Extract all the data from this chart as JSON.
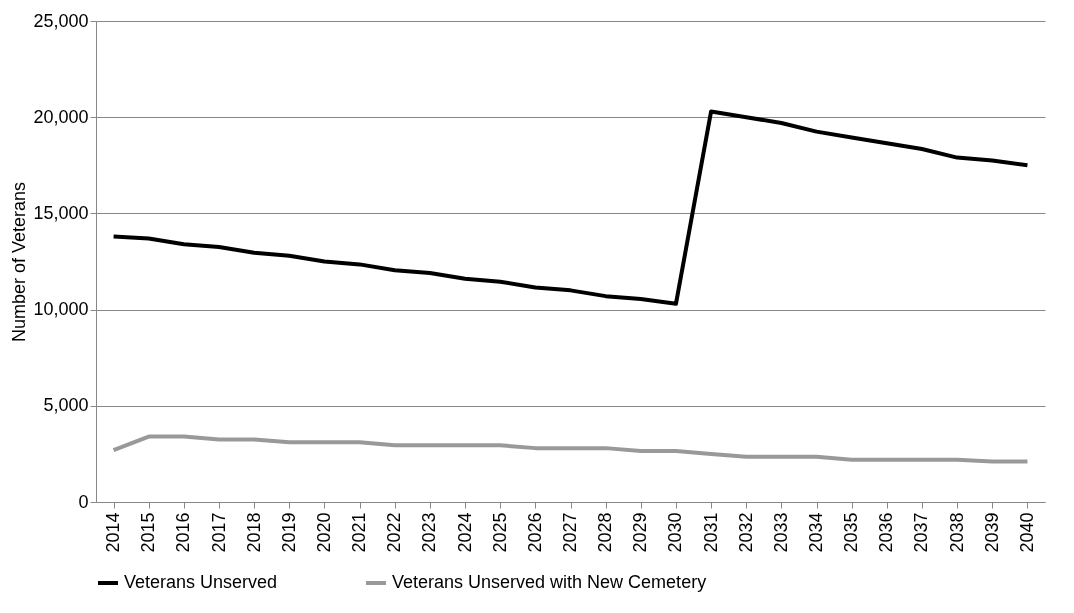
{
  "chart_data": {
    "type": "line",
    "ylabel": "Number of Veterans",
    "categories": [
      "2014",
      "2015",
      "2016",
      "2017",
      "2018",
      "2019",
      "2020",
      "2021",
      "2022",
      "2023",
      "2024",
      "2025",
      "2026",
      "2027",
      "2028",
      "2029",
      "2030",
      "2031",
      "2032",
      "2033",
      "2034",
      "2035",
      "2036",
      "2037",
      "2038",
      "2039",
      "2040"
    ],
    "series": [
      {
        "name": "Veterans Unserved",
        "color": "#000000",
        "values": [
          13800,
          13700,
          13400,
          13250,
          12950,
          12800,
          12500,
          12350,
          12050,
          11900,
          11600,
          11450,
          11150,
          11000,
          10700,
          10550,
          10300,
          20300,
          20000,
          19700,
          19250,
          18950,
          18650,
          18350,
          17900,
          17750,
          17500
        ]
      },
      {
        "name": "Veterans Unserved with New Cemetery",
        "color": "#999999",
        "values": [
          2700,
          3400,
          3400,
          3250,
          3250,
          3100,
          3100,
          3100,
          2950,
          2950,
          2950,
          2950,
          2800,
          2800,
          2800,
          2650,
          2650,
          2500,
          2350,
          2350,
          2350,
          2200,
          2200,
          2200,
          2200,
          2100,
          2100
        ]
      }
    ],
    "ylim": [
      0,
      25000
    ],
    "yticks": [
      0,
      {
        "value": 5000,
        "label": "5,000"
      },
      {
        "value": 10000,
        "label": "10,000"
      },
      {
        "value": 15000,
        "label": "15,000"
      },
      {
        "value": 20000,
        "label": "20,000"
      },
      {
        "value": 25000,
        "label": "25,000"
      }
    ],
    "grid": "y",
    "legend": "bottom",
    "marker": "none",
    "line_style": "solid"
  }
}
